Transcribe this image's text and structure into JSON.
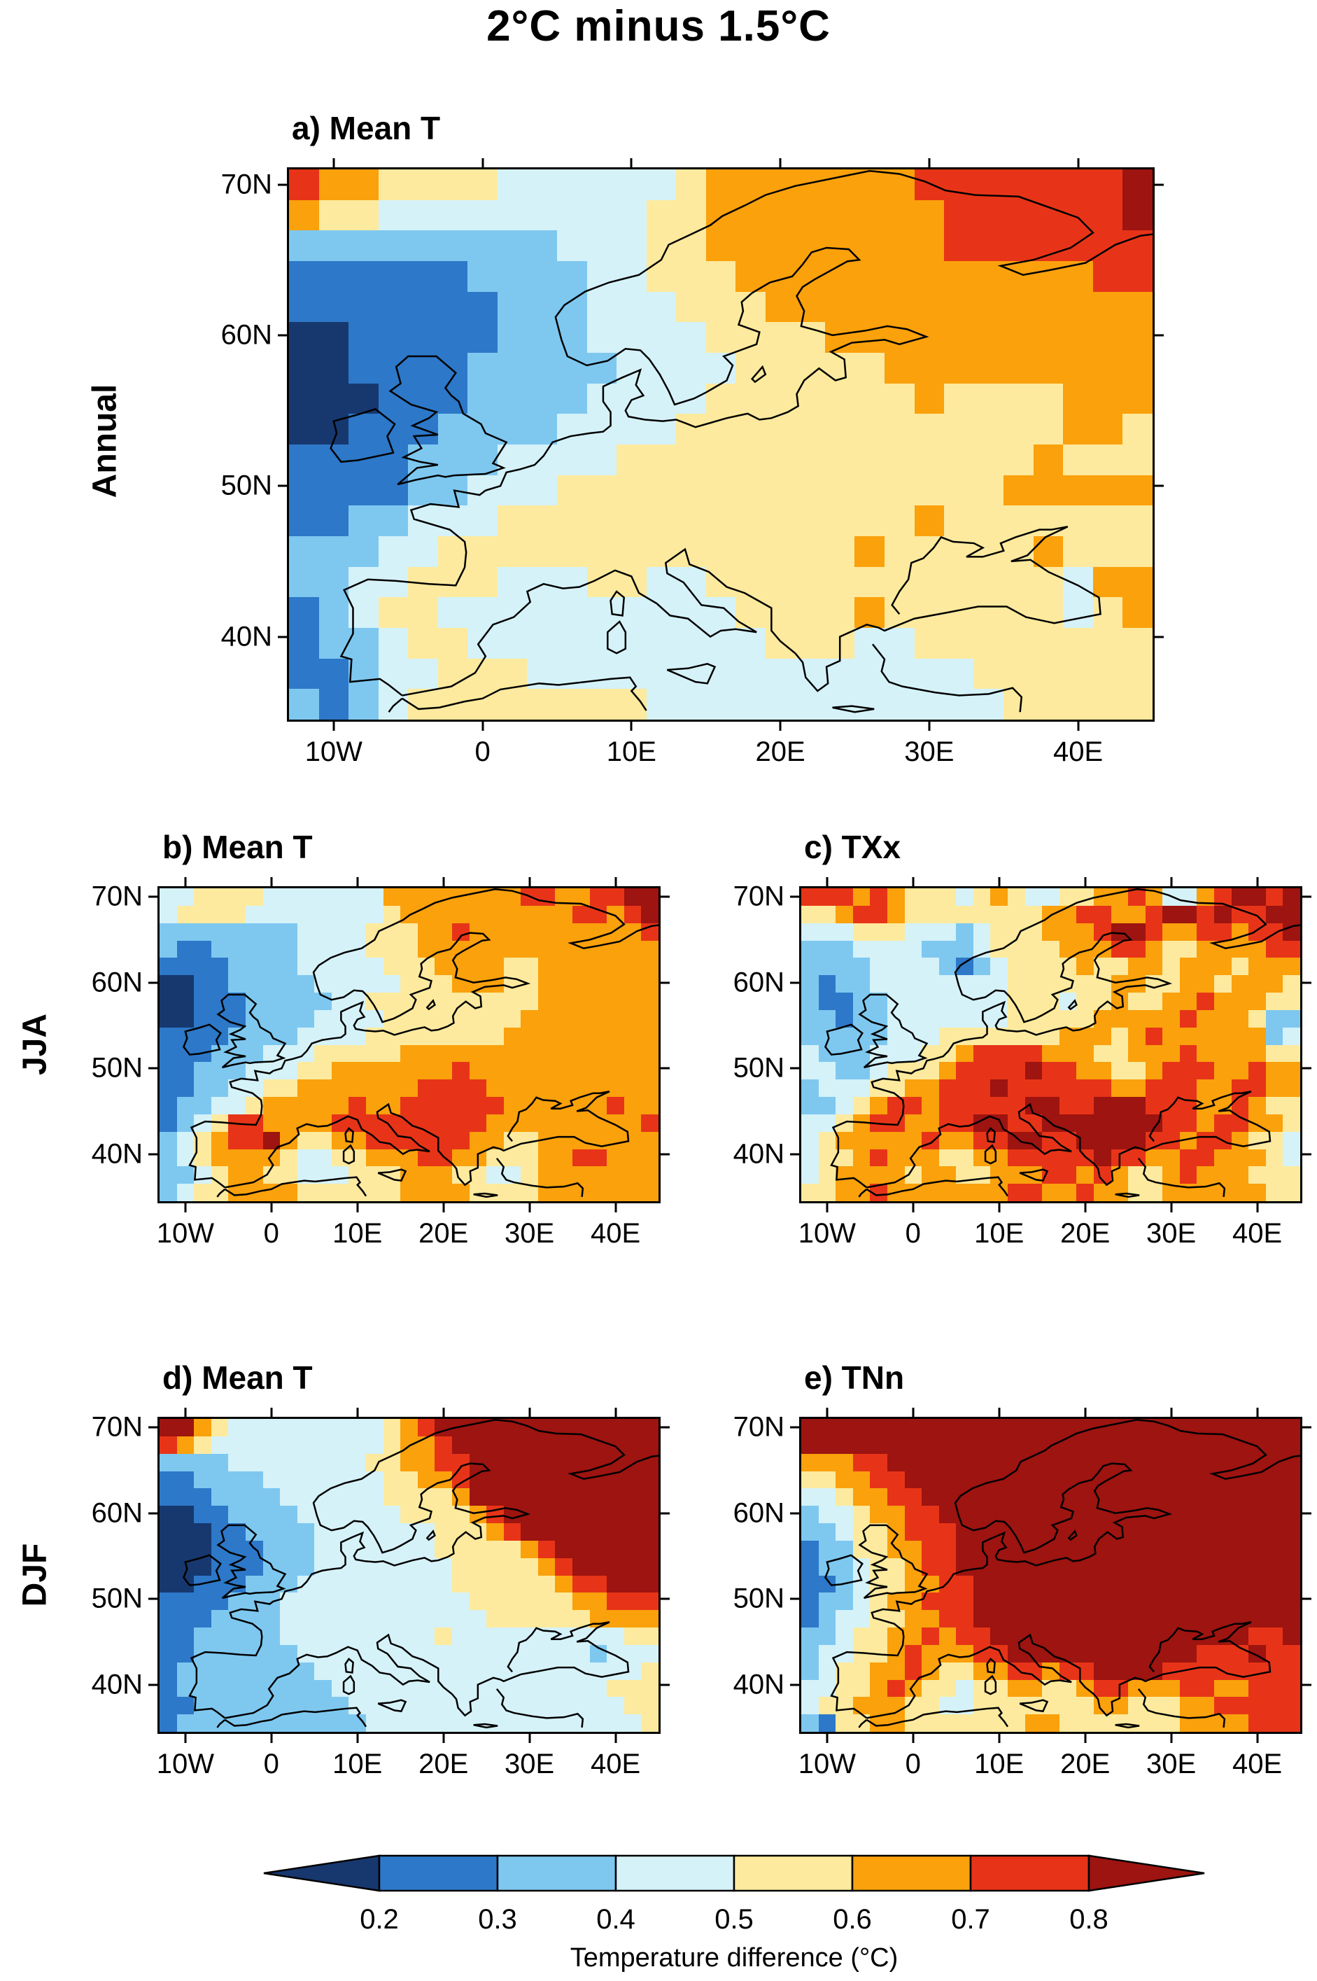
{
  "title": "2°C minus 1.5°C",
  "rows": [
    {
      "label": "Annual"
    },
    {
      "label": "JJA"
    },
    {
      "label": "DJF"
    }
  ],
  "axes": {
    "lat_ticks": [
      {
        "label": "70N",
        "value": 70
      },
      {
        "label": "60N",
        "value": 60
      },
      {
        "label": "50N",
        "value": 50
      },
      {
        "label": "40N",
        "value": 40
      }
    ],
    "lon_ticks": [
      {
        "label": "10W",
        "value": -10
      },
      {
        "label": "0",
        "value": 0
      },
      {
        "label": "10E",
        "value": 10
      },
      {
        "label": "20E",
        "value": 20
      },
      {
        "label": "30E",
        "value": 30
      },
      {
        "label": "40E",
        "value": 40
      }
    ]
  },
  "colorbar": {
    "tick_labels": [
      "0.2",
      "0.3",
      "0.4",
      "0.5",
      "0.6",
      "0.7",
      "0.8"
    ],
    "caption": "Temperature difference (°C)"
  },
  "chart_data": {
    "type": "heatmap",
    "title": "2°C minus 1.5°C",
    "units": "°C",
    "lon_range": [
      -13,
      45
    ],
    "lat_range": [
      34.5,
      71
    ],
    "grid_cols": 29,
    "grid_rows": 18,
    "bin_edges": [
      0.2,
      0.3,
      0.4,
      0.5,
      0.6,
      0.7,
      0.8
    ],
    "value_bins": [
      "<0.2",
      "0.2-0.3",
      "0.3-0.4",
      "0.4-0.5",
      "0.5-0.6",
      "0.6-0.7",
      "0.7-0.8",
      ">0.8"
    ],
    "palette": [
      "#17386e",
      "#2d78c8",
      "#7ec8f0",
      "#d5f2f9",
      "#fdea9e",
      "#faa10c",
      "#e73418",
      "#9d1410"
    ],
    "legend_position": "bottom",
    "panels": [
      {
        "id": "a",
        "label": "a) Mean T",
        "season": "Annual",
        "variable": "Mean temperature",
        "grid": [
          "65544443333334555555566666667",
          "54433333333344555555556666667",
          "22222222233344555555556666666",
          "11111122223344455555555555566",
          "11111112223334445555555555555",
          "00111112223333444455555555555",
          "00111122222333344444555555555",
          "00011122223333444444454444555",
          "00111222233334444444444444554",
          "11112223333444444444444445444",
          "11112233344444444444444455555",
          "11223334444444444444454444444",
          "22233444444444444445444445444",
          "22334443334433444444444444355",
          "12344333333333344445444444345",
          "12234433333333334443344444444",
          "11233444333333333333333444444",
          "21234444444433333333333344444"
        ]
      },
      {
        "id": "b",
        "label": "b) Mean T",
        "season": "JJA",
        "variable": "Mean temperature",
        "grid": [
          "33444433333335555555566556677",
          "34444333333334555555555566567",
          "22222222333344455655555555556",
          "21122222333344455555555555555",
          "11112222333334445555445555555",
          "00112222233333444555445555555",
          "00111222223344444444445555555",
          "00111222233334444444455555555",
          "11112222333344444444555555555",
          "11122233344444555555555555555",
          "11222333445555555655555555555",
          "11223344555555566665555555555",
          "12233455555655666666555555655",
          "12346655556666666665555555556",
          "23456675445566666655445555555",
          "23455554334455566554445566555",
          "22345544333444555443345555555",
          "23445555444444555544445555555"
        ]
      },
      {
        "id": "c",
        "label": "c) TXx",
        "season": "JJA",
        "variable": "Max of daily max temperature",
        "grid": [
          "66656544434543344556533567767",
          "44566544444444556655677676677",
          "33344433323444555677655665667",
          "22233332223444455566544555566",
          "22223333212344445445545554555",
          "21223333333344444455445545554",
          "21122333333344434454455655544",
          "22122333333344444555556555422",
          "22222333444444455545655555523",
          "32223334456666555445556555544",
          "33223444566667665544566655655",
          "23334455666766666655666556655",
          "22345665666667766777666556544",
          "33456655667766777777766566554",
          "34555556556677667777665665443",
          "34456555445566666766556655543",
          "34555545544555665654456555444",
          "44556555555566556554455555544"
        ]
      },
      {
        "id": "d",
        "label": "d) Mean T",
        "season": "DJF",
        "variable": "Mean temperature",
        "grid": [
          "77543333333334567777777777777",
          "65433333333334556777777777777",
          "22223333333344556677777777777",
          "11222233333334455677777777777",
          "11122223333334444577777777777",
          "00112222333333444456777777777",
          "00011222233333334445677777777",
          "00011122233333334444456777777",
          "00011122233333333444445677777",
          "00111222333333333444444566777",
          "11112223333333333344444455666",
          "11122223333333333334444445555",
          "11222223333333334333333333344",
          "11222222333333333333333332333",
          "12222222233333333333333333334",
          "12222222223333333333333333444",
          "11222222222333333333333333344",
          "12222222222233333333333333334"
        ]
      },
      {
        "id": "e",
        "label": "e) TNn",
        "season": "DJF",
        "variable": "Min of daily min temperature",
        "grid": [
          "77777777777777777777777777777",
          "77777777777777777777777777777",
          "55566777777777777777777777777",
          "44556677777777777777777777777",
          "33455667777777777777777777777",
          "23345566777777777777777777777",
          "22344566677777777777777777777",
          "12244556677777777777777777777",
          "12234456677777777777777777777",
          "11234455667777777777777777777",
          "12234556667777777777777777777",
          "12334455667777777777777777777",
          "22344556566777777777777777667",
          "23344565556677777777777666766",
          "23445565445566566777766666666",
          "33445654434455445665556655666",
          "34455544334444444554445566666",
          "21445544444445544444445555666"
        ]
      }
    ]
  }
}
